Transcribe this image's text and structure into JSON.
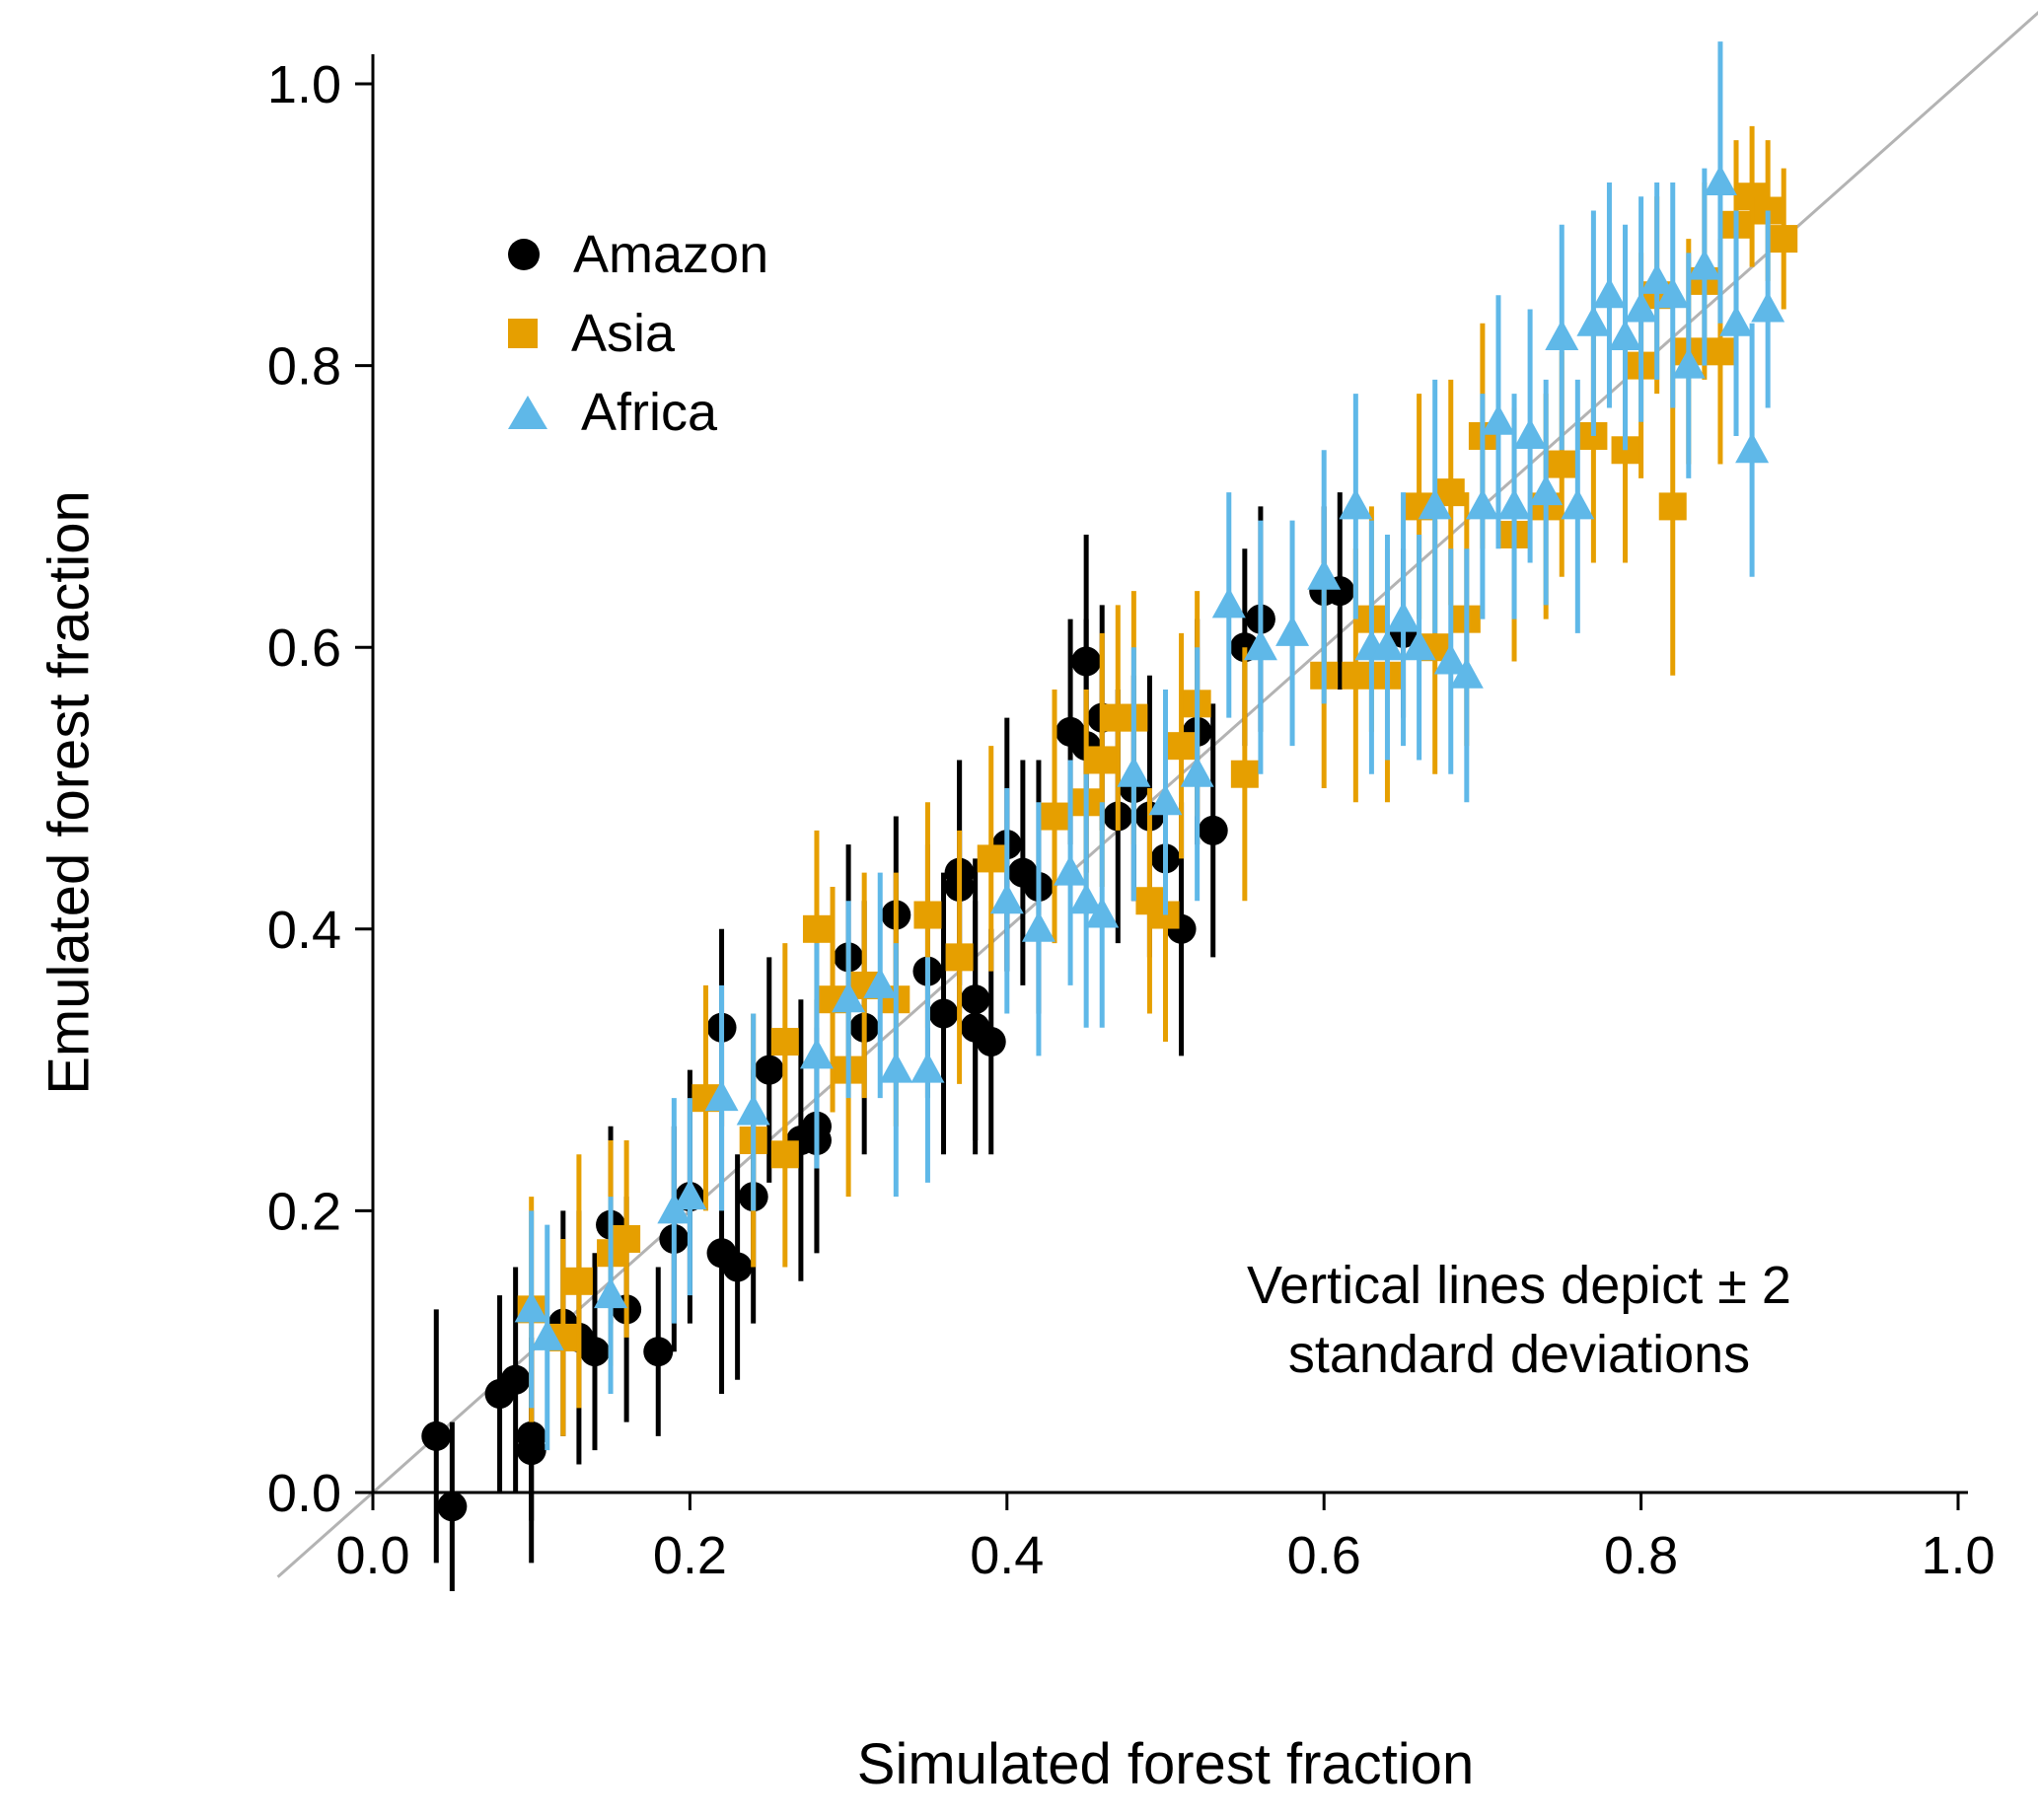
{
  "chart_data": {
    "type": "scatter",
    "title": "",
    "xlabel": "Simulated forest fraction",
    "ylabel": "Emulated forest fraction",
    "xlim": [
      0.0,
      1.0
    ],
    "ylim": [
      0.0,
      1.0
    ],
    "xticks": [
      0.0,
      0.2,
      0.4,
      0.6,
      0.8,
      1.0
    ],
    "yticks": [
      0.0,
      0.2,
      0.4,
      0.6,
      0.8,
      1.0
    ],
    "grid": false,
    "identity_line": true,
    "identity_line_color": "#b3b3b3",
    "legend_position": "top-left",
    "error_bars": "vertical, plus/minus 2 standard deviations",
    "annotation": {
      "line1": "Vertical lines depict ± 2",
      "line2": "standard deviations"
    },
    "series": [
      {
        "name": "Amazon",
        "marker": "circle",
        "color": "#000000",
        "points": [
          [
            0.04,
            0.04,
            0.09
          ],
          [
            0.05,
            -0.01,
            0.06
          ],
          [
            0.08,
            0.07,
            0.07
          ],
          [
            0.09,
            0.08,
            0.08
          ],
          [
            0.1,
            0.04,
            0.06
          ],
          [
            0.1,
            0.03,
            0.08
          ],
          [
            0.12,
            0.12,
            0.08
          ],
          [
            0.13,
            0.11,
            0.09
          ],
          [
            0.14,
            0.1,
            0.07
          ],
          [
            0.15,
            0.19,
            0.07
          ],
          [
            0.16,
            0.13,
            0.08
          ],
          [
            0.18,
            0.1,
            0.06
          ],
          [
            0.19,
            0.18,
            0.08
          ],
          [
            0.2,
            0.21,
            0.09
          ],
          [
            0.22,
            0.17,
            0.1
          ],
          [
            0.22,
            0.33,
            0.07
          ],
          [
            0.23,
            0.16,
            0.08
          ],
          [
            0.24,
            0.21,
            0.09
          ],
          [
            0.25,
            0.3,
            0.08
          ],
          [
            0.27,
            0.25,
            0.1
          ],
          [
            0.28,
            0.26,
            0.09
          ],
          [
            0.28,
            0.25,
            0.08
          ],
          [
            0.3,
            0.38,
            0.08
          ],
          [
            0.31,
            0.33,
            0.09
          ],
          [
            0.33,
            0.41,
            0.07
          ],
          [
            0.35,
            0.37,
            0.09
          ],
          [
            0.36,
            0.34,
            0.1
          ],
          [
            0.37,
            0.43,
            0.09
          ],
          [
            0.37,
            0.44,
            0.08
          ],
          [
            0.38,
            0.35,
            0.1
          ],
          [
            0.38,
            0.33,
            0.09
          ],
          [
            0.39,
            0.32,
            0.08
          ],
          [
            0.4,
            0.46,
            0.09
          ],
          [
            0.41,
            0.44,
            0.08
          ],
          [
            0.42,
            0.43,
            0.09
          ],
          [
            0.44,
            0.54,
            0.08
          ],
          [
            0.45,
            0.53,
            0.09
          ],
          [
            0.45,
            0.59,
            0.09
          ],
          [
            0.46,
            0.55,
            0.08
          ],
          [
            0.47,
            0.48,
            0.09
          ],
          [
            0.48,
            0.5,
            0.08
          ],
          [
            0.49,
            0.48,
            0.1
          ],
          [
            0.5,
            0.45,
            0.11
          ],
          [
            0.51,
            0.4,
            0.09
          ],
          [
            0.52,
            0.54,
            0.08
          ],
          [
            0.53,
            0.47,
            0.09
          ],
          [
            0.55,
            0.6,
            0.07
          ],
          [
            0.56,
            0.62,
            0.08
          ],
          [
            0.6,
            0.64,
            0.06
          ],
          [
            0.61,
            0.64,
            0.07
          ],
          [
            0.65,
            0.61,
            0.06
          ]
        ]
      },
      {
        "name": "Asia",
        "marker": "square",
        "color": "#E69F00",
        "points": [
          [
            0.1,
            0.13,
            0.08
          ],
          [
            0.12,
            0.11,
            0.07
          ],
          [
            0.13,
            0.15,
            0.09
          ],
          [
            0.15,
            0.17,
            0.08
          ],
          [
            0.16,
            0.18,
            0.07
          ],
          [
            0.21,
            0.28,
            0.08
          ],
          [
            0.24,
            0.25,
            0.09
          ],
          [
            0.26,
            0.24,
            0.08
          ],
          [
            0.26,
            0.32,
            0.07
          ],
          [
            0.28,
            0.4,
            0.07
          ],
          [
            0.29,
            0.35,
            0.08
          ],
          [
            0.3,
            0.3,
            0.09
          ],
          [
            0.31,
            0.36,
            0.08
          ],
          [
            0.33,
            0.35,
            0.09
          ],
          [
            0.35,
            0.41,
            0.08
          ],
          [
            0.37,
            0.38,
            0.09
          ],
          [
            0.39,
            0.45,
            0.08
          ],
          [
            0.43,
            0.48,
            0.09
          ],
          [
            0.45,
            0.49,
            0.08
          ],
          [
            0.46,
            0.52,
            0.09
          ],
          [
            0.47,
            0.55,
            0.08
          ],
          [
            0.48,
            0.55,
            0.09
          ],
          [
            0.49,
            0.42,
            0.08
          ],
          [
            0.5,
            0.41,
            0.09
          ],
          [
            0.51,
            0.53,
            0.08
          ],
          [
            0.52,
            0.56,
            0.08
          ],
          [
            0.55,
            0.51,
            0.09
          ],
          [
            0.6,
            0.58,
            0.08
          ],
          [
            0.62,
            0.58,
            0.09
          ],
          [
            0.63,
            0.62,
            0.08
          ],
          [
            0.64,
            0.58,
            0.09
          ],
          [
            0.66,
            0.7,
            0.08
          ],
          [
            0.67,
            0.6,
            0.09
          ],
          [
            0.68,
            0.71,
            0.08
          ],
          [
            0.69,
            0.62,
            0.09
          ],
          [
            0.7,
            0.75,
            0.08
          ],
          [
            0.72,
            0.68,
            0.09
          ],
          [
            0.74,
            0.7,
            0.08
          ],
          [
            0.75,
            0.73,
            0.08
          ],
          [
            0.77,
            0.75,
            0.09
          ],
          [
            0.79,
            0.74,
            0.08
          ],
          [
            0.8,
            0.8,
            0.08
          ],
          [
            0.81,
            0.85,
            0.07
          ],
          [
            0.82,
            0.7,
            0.12
          ],
          [
            0.83,
            0.81,
            0.08
          ],
          [
            0.84,
            0.86,
            0.07
          ],
          [
            0.85,
            0.81,
            0.08
          ],
          [
            0.86,
            0.9,
            0.06
          ],
          [
            0.87,
            0.92,
            0.05
          ],
          [
            0.88,
            0.91,
            0.05
          ],
          [
            0.89,
            0.89,
            0.05
          ]
        ]
      },
      {
        "name": "Africa",
        "marker": "triangle",
        "color": "#5FB8E8",
        "points": [
          [
            0.1,
            0.13,
            0.07
          ],
          [
            0.11,
            0.11,
            0.08
          ],
          [
            0.15,
            0.14,
            0.07
          ],
          [
            0.19,
            0.2,
            0.08
          ],
          [
            0.2,
            0.21,
            0.07
          ],
          [
            0.22,
            0.28,
            0.08
          ],
          [
            0.24,
            0.27,
            0.07
          ],
          [
            0.28,
            0.31,
            0.08
          ],
          [
            0.3,
            0.35,
            0.07
          ],
          [
            0.32,
            0.36,
            0.08
          ],
          [
            0.33,
            0.3,
            0.09
          ],
          [
            0.35,
            0.3,
            0.08
          ],
          [
            0.4,
            0.42,
            0.08
          ],
          [
            0.42,
            0.4,
            0.09
          ],
          [
            0.44,
            0.44,
            0.08
          ],
          [
            0.45,
            0.42,
            0.09
          ],
          [
            0.46,
            0.41,
            0.08
          ],
          [
            0.48,
            0.51,
            0.09
          ],
          [
            0.5,
            0.49,
            0.08
          ],
          [
            0.52,
            0.51,
            0.09
          ],
          [
            0.54,
            0.63,
            0.08
          ],
          [
            0.56,
            0.6,
            0.09
          ],
          [
            0.58,
            0.61,
            0.08
          ],
          [
            0.6,
            0.65,
            0.09
          ],
          [
            0.62,
            0.7,
            0.08
          ],
          [
            0.63,
            0.6,
            0.09
          ],
          [
            0.64,
            0.6,
            0.08
          ],
          [
            0.65,
            0.62,
            0.09
          ],
          [
            0.66,
            0.6,
            0.08
          ],
          [
            0.67,
            0.7,
            0.09
          ],
          [
            0.68,
            0.59,
            0.08
          ],
          [
            0.69,
            0.58,
            0.09
          ],
          [
            0.7,
            0.7,
            0.08
          ],
          [
            0.71,
            0.76,
            0.09
          ],
          [
            0.72,
            0.7,
            0.08
          ],
          [
            0.73,
            0.75,
            0.09
          ],
          [
            0.74,
            0.71,
            0.08
          ],
          [
            0.75,
            0.82,
            0.08
          ],
          [
            0.76,
            0.7,
            0.09
          ],
          [
            0.77,
            0.83,
            0.08
          ],
          [
            0.78,
            0.85,
            0.08
          ],
          [
            0.79,
            0.82,
            0.08
          ],
          [
            0.8,
            0.84,
            0.08
          ],
          [
            0.81,
            0.86,
            0.07
          ],
          [
            0.82,
            0.85,
            0.08
          ],
          [
            0.83,
            0.8,
            0.08
          ],
          [
            0.84,
            0.87,
            0.07
          ],
          [
            0.85,
            0.93,
            0.1
          ],
          [
            0.86,
            0.83,
            0.08
          ],
          [
            0.87,
            0.74,
            0.09
          ],
          [
            0.88,
            0.84,
            0.07
          ]
        ]
      }
    ]
  }
}
